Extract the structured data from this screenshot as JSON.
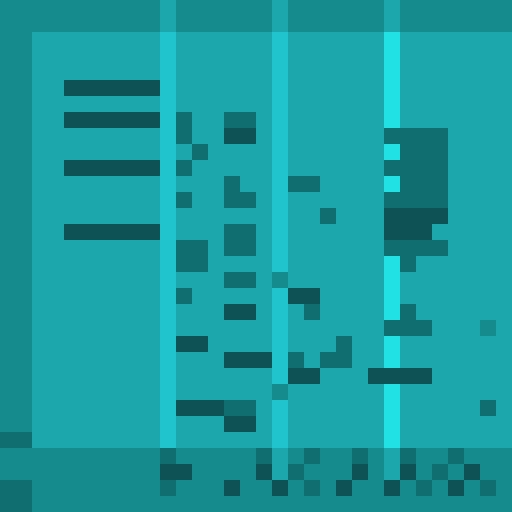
{
  "chart_data": {
    "type": "heatmap",
    "tick_labels": false,
    "color": "#1aa6ab",
    "cells": [
      [
        4,
        4,
        4,
        4,
        4,
        4,
        4,
        4,
        4,
        4,
        5,
        4,
        4,
        4,
        4,
        4,
        4,
        5,
        4,
        4,
        4,
        4,
        4,
        4,
        5,
        4,
        4,
        4,
        4,
        4,
        4,
        4
      ],
      [
        4,
        4,
        4,
        4,
        4,
        4,
        4,
        4,
        4,
        4,
        5,
        4,
        4,
        4,
        4,
        4,
        4,
        5,
        4,
        4,
        4,
        4,
        4,
        4,
        5,
        4,
        4,
        4,
        4,
        4,
        4,
        4
      ],
      [
        4,
        4,
        5,
        5,
        5,
        5,
        5,
        5,
        5,
        5,
        6,
        5,
        5,
        5,
        5,
        5,
        5,
        6,
        5,
        5,
        5,
        5,
        5,
        5,
        7,
        5,
        5,
        5,
        5,
        5,
        5,
        5
      ],
      [
        4,
        4,
        5,
        5,
        5,
        5,
        5,
        5,
        5,
        5,
        6,
        5,
        5,
        5,
        5,
        5,
        5,
        6,
        5,
        5,
        5,
        5,
        5,
        5,
        7,
        5,
        5,
        5,
        5,
        5,
        5,
        5
      ],
      [
        4,
        4,
        5,
        5,
        5,
        5,
        5,
        5,
        5,
        5,
        6,
        5,
        5,
        5,
        5,
        5,
        5,
        6,
        5,
        5,
        5,
        5,
        5,
        5,
        7,
        5,
        5,
        5,
        5,
        5,
        5,
        5
      ],
      [
        4,
        4,
        5,
        5,
        2,
        2,
        2,
        2,
        2,
        2,
        6,
        5,
        5,
        5,
        5,
        5,
        5,
        6,
        5,
        5,
        5,
        5,
        5,
        5,
        7,
        5,
        5,
        5,
        5,
        5,
        5,
        5
      ],
      [
        4,
        4,
        5,
        5,
        5,
        5,
        5,
        5,
        5,
        5,
        6,
        5,
        5,
        5,
        5,
        5,
        5,
        6,
        5,
        5,
        5,
        5,
        5,
        5,
        7,
        5,
        5,
        5,
        5,
        5,
        5,
        5
      ],
      [
        4,
        4,
        5,
        5,
        2,
        2,
        2,
        2,
        2,
        2,
        6,
        3,
        5,
        5,
        3,
        3,
        5,
        6,
        5,
        5,
        5,
        5,
        5,
        5,
        7,
        5,
        5,
        5,
        5,
        5,
        5,
        5
      ],
      [
        4,
        4,
        5,
        5,
        5,
        5,
        5,
        5,
        5,
        5,
        6,
        3,
        5,
        5,
        2,
        2,
        5,
        6,
        5,
        5,
        5,
        5,
        5,
        5,
        3,
        3,
        3,
        3,
        5,
        5,
        5,
        5
      ],
      [
        4,
        4,
        5,
        5,
        5,
        5,
        5,
        5,
        5,
        5,
        6,
        5,
        3,
        5,
        5,
        5,
        5,
        6,
        5,
        5,
        5,
        5,
        5,
        5,
        7,
        3,
        3,
        3,
        5,
        5,
        5,
        5
      ],
      [
        4,
        4,
        5,
        5,
        2,
        2,
        2,
        2,
        2,
        2,
        6,
        3,
        5,
        5,
        5,
        5,
        5,
        6,
        5,
        5,
        5,
        5,
        5,
        5,
        3,
        3,
        3,
        3,
        5,
        5,
        5,
        5
      ],
      [
        4,
        4,
        5,
        5,
        5,
        5,
        5,
        5,
        5,
        5,
        6,
        5,
        5,
        5,
        3,
        5,
        5,
        6,
        3,
        3,
        5,
        5,
        5,
        5,
        7,
        3,
        3,
        3,
        5,
        5,
        5,
        5
      ],
      [
        4,
        4,
        5,
        5,
        5,
        5,
        5,
        5,
        5,
        5,
        6,
        3,
        5,
        5,
        3,
        3,
        5,
        6,
        5,
        5,
        5,
        5,
        5,
        5,
        3,
        3,
        3,
        3,
        5,
        5,
        5,
        5
      ],
      [
        4,
        4,
        5,
        5,
        5,
        5,
        5,
        5,
        5,
        5,
        6,
        5,
        5,
        5,
        5,
        5,
        5,
        6,
        5,
        5,
        3,
        5,
        5,
        5,
        2,
        2,
        2,
        2,
        5,
        5,
        5,
        5
      ],
      [
        4,
        4,
        5,
        5,
        2,
        2,
        2,
        2,
        2,
        2,
        6,
        5,
        5,
        5,
        3,
        3,
        5,
        6,
        5,
        5,
        5,
        5,
        5,
        5,
        2,
        2,
        2,
        5,
        5,
        5,
        5,
        5
      ],
      [
        4,
        4,
        5,
        5,
        5,
        5,
        5,
        5,
        5,
        5,
        6,
        3,
        3,
        5,
        3,
        3,
        5,
        6,
        5,
        5,
        5,
        5,
        5,
        5,
        3,
        3,
        3,
        3,
        5,
        5,
        5,
        5
      ],
      [
        4,
        4,
        5,
        5,
        5,
        5,
        5,
        5,
        5,
        5,
        6,
        3,
        3,
        5,
        5,
        5,
        5,
        6,
        5,
        5,
        5,
        5,
        5,
        5,
        7,
        3,
        5,
        5,
        5,
        5,
        5,
        5
      ],
      [
        4,
        4,
        5,
        5,
        5,
        5,
        5,
        5,
        5,
        5,
        6,
        5,
        5,
        5,
        3,
        3,
        5,
        4,
        5,
        5,
        5,
        5,
        5,
        5,
        7,
        5,
        5,
        5,
        5,
        5,
        5,
        5
      ],
      [
        4,
        4,
        5,
        5,
        5,
        5,
        5,
        5,
        5,
        5,
        6,
        3,
        5,
        5,
        5,
        5,
        5,
        6,
        2,
        2,
        5,
        5,
        5,
        5,
        7,
        5,
        5,
        5,
        5,
        5,
        5,
        5
      ],
      [
        4,
        4,
        5,
        5,
        5,
        5,
        5,
        5,
        5,
        5,
        6,
        5,
        5,
        5,
        2,
        2,
        5,
        6,
        5,
        3,
        5,
        5,
        5,
        5,
        7,
        3,
        5,
        5,
        5,
        5,
        5,
        5
      ],
      [
        4,
        4,
        5,
        5,
        5,
        5,
        5,
        5,
        5,
        5,
        6,
        5,
        5,
        5,
        5,
        5,
        5,
        6,
        5,
        5,
        5,
        5,
        5,
        5,
        3,
        3,
        3,
        5,
        5,
        5,
        4,
        5
      ],
      [
        4,
        4,
        5,
        5,
        5,
        5,
        5,
        5,
        5,
        5,
        6,
        2,
        2,
        5,
        5,
        5,
        5,
        6,
        5,
        5,
        5,
        3,
        5,
        5,
        7,
        5,
        5,
        5,
        5,
        5,
        5,
        5
      ],
      [
        4,
        4,
        5,
        5,
        5,
        5,
        5,
        5,
        5,
        5,
        6,
        5,
        5,
        5,
        2,
        2,
        2,
        6,
        3,
        5,
        3,
        3,
        5,
        5,
        7,
        5,
        5,
        5,
        5,
        5,
        5,
        5
      ],
      [
        4,
        4,
        5,
        5,
        5,
        5,
        5,
        5,
        5,
        5,
        6,
        5,
        5,
        5,
        5,
        5,
        5,
        6,
        2,
        2,
        5,
        5,
        5,
        2,
        2,
        2,
        2,
        5,
        5,
        5,
        5,
        5
      ],
      [
        4,
        4,
        5,
        5,
        5,
        5,
        5,
        5,
        5,
        5,
        6,
        5,
        5,
        5,
        5,
        5,
        5,
        4,
        5,
        5,
        5,
        5,
        5,
        5,
        7,
        5,
        5,
        5,
        5,
        5,
        5,
        5
      ],
      [
        4,
        4,
        5,
        5,
        5,
        5,
        5,
        5,
        5,
        5,
        6,
        2,
        2,
        2,
        3,
        3,
        5,
        6,
        5,
        5,
        5,
        5,
        5,
        5,
        7,
        5,
        5,
        5,
        5,
        5,
        3,
        5
      ],
      [
        4,
        4,
        5,
        5,
        5,
        5,
        5,
        5,
        5,
        5,
        6,
        5,
        5,
        5,
        2,
        2,
        5,
        6,
        5,
        5,
        5,
        5,
        5,
        5,
        7,
        5,
        5,
        5,
        5,
        5,
        5,
        5
      ],
      [
        3,
        3,
        5,
        5,
        5,
        5,
        5,
        5,
        5,
        5,
        6,
        5,
        5,
        5,
        5,
        5,
        5,
        6,
        5,
        5,
        5,
        5,
        5,
        5,
        7,
        5,
        5,
        5,
        5,
        5,
        5,
        5
      ],
      [
        4,
        4,
        4,
        4,
        4,
        4,
        4,
        4,
        4,
        4,
        3,
        4,
        4,
        4,
        4,
        4,
        3,
        5,
        4,
        3,
        4,
        4,
        3,
        4,
        5,
        3,
        4,
        4,
        3,
        4,
        4,
        4
      ],
      [
        4,
        4,
        4,
        4,
        4,
        4,
        4,
        4,
        4,
        4,
        2,
        2,
        4,
        4,
        4,
        4,
        2,
        5,
        3,
        4,
        4,
        4,
        2,
        4,
        5,
        2,
        4,
        3,
        4,
        2,
        4,
        4
      ],
      [
        3,
        3,
        4,
        4,
        4,
        4,
        4,
        4,
        4,
        4,
        3,
        4,
        4,
        4,
        2,
        4,
        4,
        2,
        4,
        3,
        4,
        2,
        4,
        4,
        2,
        4,
        3,
        4,
        2,
        4,
        3,
        4
      ],
      [
        3,
        3,
        4,
        4,
        4,
        4,
        4,
        4,
        4,
        4,
        4,
        4,
        4,
        4,
        4,
        4,
        4,
        4,
        4,
        4,
        4,
        4,
        4,
        4,
        4,
        4,
        4,
        4,
        4,
        4,
        4,
        4
      ]
    ]
  }
}
